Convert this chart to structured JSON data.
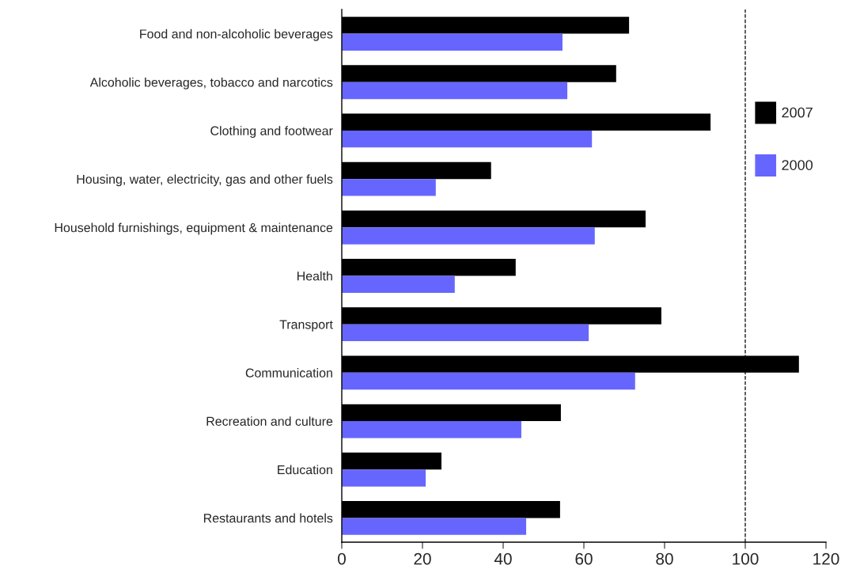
{
  "chart_data": {
    "type": "bar",
    "orientation": "horizontal",
    "categories": [
      "Food and non-alcoholic beverages",
      "Alcoholic beverages, tobacco and narcotics",
      "Clothing and footwear",
      "Housing, water, electricity, gas and other fuels",
      "Household furnishings, equipment & maintenance",
      "Health",
      "Transport",
      "Communication",
      "Recreation and culture",
      "Education",
      "Restaurants and hotels"
    ],
    "series": [
      {
        "name": "2007",
        "color": "#000000",
        "values": [
          71.2,
          68,
          91.4,
          37,
          75.3,
          43.1,
          79.2,
          113.3,
          54.3,
          24.7,
          54.1
        ]
      },
      {
        "name": "2000",
        "color": "#6666ff",
        "values": [
          54.7,
          55.9,
          62,
          23.3,
          62.7,
          28,
          61.2,
          72.7,
          44.5,
          20.8,
          45.7
        ]
      }
    ],
    "xlim": [
      0,
      120
    ],
    "xticks": [
      0,
      20,
      40,
      60,
      80,
      100,
      120
    ],
    "ref_lines": [
      {
        "axis": "x",
        "value": 100,
        "color": "#000000",
        "line_style": "dashed"
      }
    ],
    "legend": "right",
    "grid": false
  }
}
